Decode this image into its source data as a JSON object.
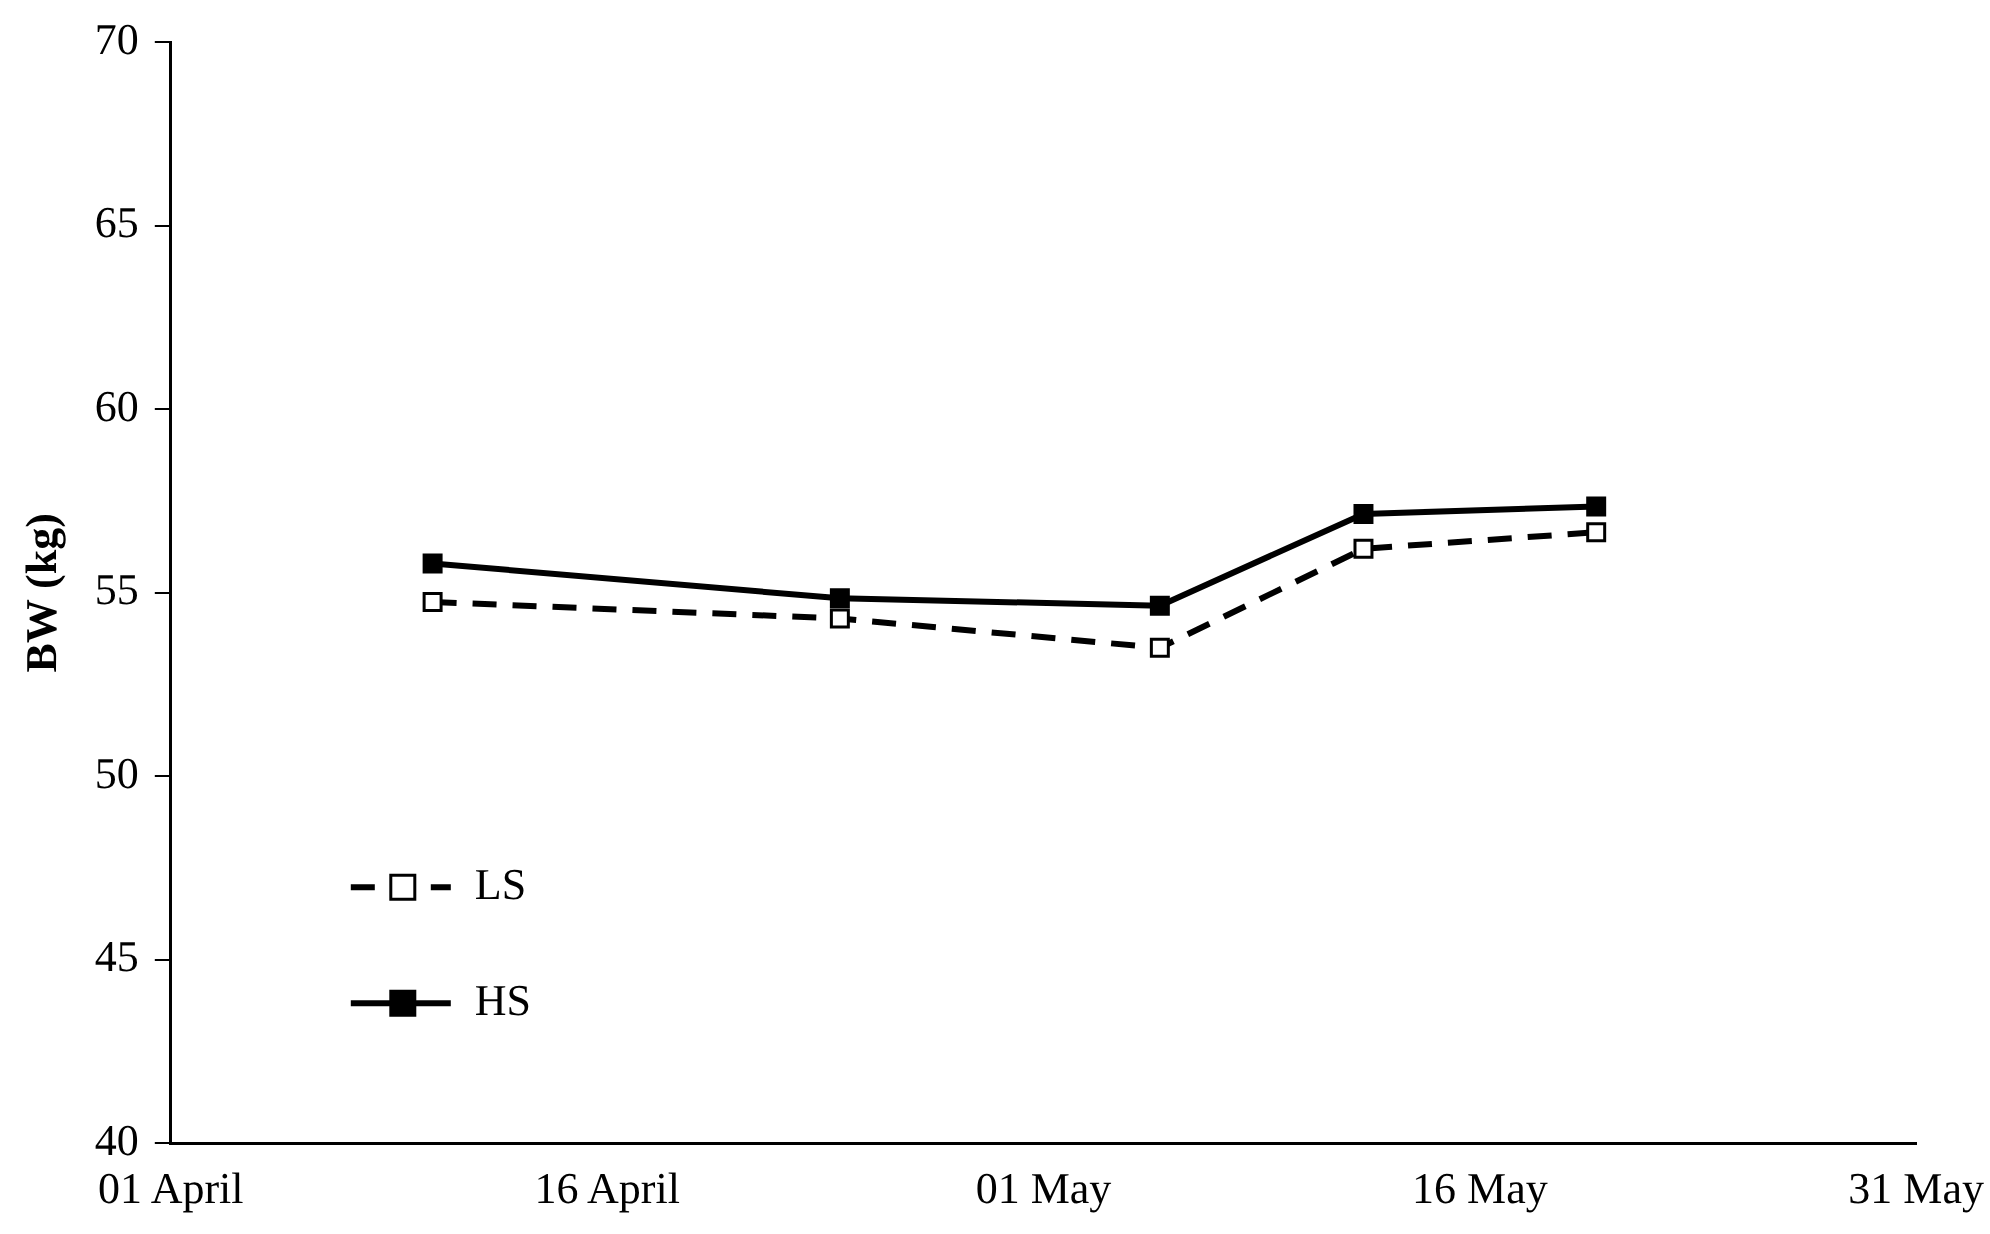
{
  "chart_data": {
    "type": "line",
    "ylabel": "BW (kg)",
    "x": [
      "--04-10",
      "--04-24",
      "--05-05",
      "--05-12",
      "--05-20"
    ],
    "series": [
      {
        "name": "LS",
        "color": "#000000",
        "values": [
          54.75,
          54.3,
          53.5,
          56.2,
          56.65
        ],
        "marker": "square",
        "line_style": "dashed"
      },
      {
        "name": "HS",
        "color": "#000000",
        "values": [
          55.8,
          54.85,
          54.65,
          57.15,
          57.35
        ],
        "marker": "square",
        "line_style": "solid"
      }
    ],
    "xlim": [
      "--04-01",
      "--05-31"
    ],
    "xticks": [
      {
        "value": "--04-01",
        "label": "01 April"
      },
      {
        "value": "--04-16",
        "label": "16 April"
      },
      {
        "value": "--05-01",
        "label": "01 May"
      },
      {
        "value": "--05-16",
        "label": "16 May"
      },
      {
        "value": "--05-31",
        "label": "31 May"
      }
    ],
    "ylim": [
      40,
      70
    ],
    "yticks": [
      40,
      45,
      50,
      55,
      60,
      65,
      70
    ],
    "grid": false,
    "legend": "bottom left"
  }
}
